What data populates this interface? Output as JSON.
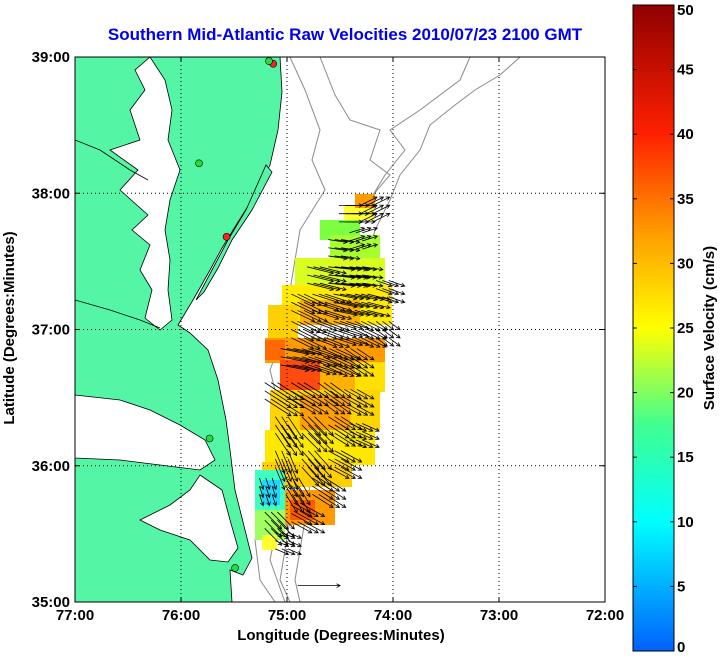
{
  "chart_data": {
    "type": "heatmap",
    "title": "Southern Mid-Atlantic Raw Velocities 2010/07/23 2100 GMT",
    "xlabel": "Longitude (Degrees:Minutes)",
    "ylabel": "Latitude (Degrees:Minutes)",
    "xlim": [
      -77,
      -72
    ],
    "ylim": [
      35,
      39
    ],
    "x_ticks": [
      {
        "value": -77,
        "label": "77:00"
      },
      {
        "value": -76,
        "label": "76:00"
      },
      {
        "value": -75,
        "label": "75:00"
      },
      {
        "value": -74,
        "label": "74:00"
      },
      {
        "value": -73,
        "label": "73:00"
      },
      {
        "value": -72,
        "label": "72:00"
      }
    ],
    "y_ticks": [
      {
        "value": 35,
        "label": "35:00"
      },
      {
        "value": 36,
        "label": "36:00"
      },
      {
        "value": 37,
        "label": "37:00"
      },
      {
        "value": 38,
        "label": "38:00"
      },
      {
        "value": 39,
        "label": "39:00"
      }
    ],
    "grid": true,
    "colorbar": {
      "label": "Surface Velocity (cm/s)",
      "min": 0,
      "max": 50,
      "ticks": [
        0,
        5,
        10,
        15,
        20,
        25,
        30,
        35,
        40,
        45,
        50
      ],
      "placement": "right"
    },
    "scale_vector": {
      "lon": -74.9,
      "lat": 35.12,
      "u": 25,
      "v": 0
    },
    "sites": [
      {
        "lon": -75.13,
        "lat": 38.95,
        "status": "red"
      },
      {
        "lon": -75.17,
        "lat": 38.97,
        "status": "green"
      },
      {
        "lon": -75.83,
        "lat": 38.22,
        "status": "green"
      },
      {
        "lon": -75.57,
        "lat": 37.68,
        "status": "red"
      },
      {
        "lon": -75.73,
        "lat": 36.2,
        "status": "green"
      },
      {
        "lon": -75.49,
        "lat": 35.25,
        "status": "green"
      }
    ],
    "velocity_field": [
      {
        "lon": -74.25,
        "lat": 37.85,
        "u": 18,
        "v": 9,
        "speed": 20
      },
      {
        "lon": -74.45,
        "lat": 37.85,
        "u": 25,
        "v": 0,
        "speed": 25
      },
      {
        "lon": -74.35,
        "lat": 37.65,
        "u": 16,
        "v": 5,
        "speed": 17
      },
      {
        "lon": -74.55,
        "lat": 37.6,
        "u": 20,
        "v": -3,
        "speed": 20
      },
      {
        "lon": -74.35,
        "lat": 37.4,
        "u": 22,
        "v": -3,
        "speed": 22
      },
      {
        "lon": -74.55,
        "lat": 37.4,
        "u": 28,
        "v": -3,
        "speed": 28
      },
      {
        "lon": -74.75,
        "lat": 37.4,
        "u": 28,
        "v": -7,
        "speed": 29
      },
      {
        "lon": -74.1,
        "lat": 37.3,
        "u": 17,
        "v": -6,
        "speed": 18
      },
      {
        "lon": -74.3,
        "lat": 37.2,
        "u": 24,
        "v": -6,
        "speed": 25
      },
      {
        "lon": -74.5,
        "lat": 37.2,
        "u": 25,
        "v": -5,
        "speed": 26
      },
      {
        "lon": -74.7,
        "lat": 37.2,
        "u": 28,
        "v": -9,
        "speed": 29
      },
      {
        "lon": -74.9,
        "lat": 37.2,
        "u": 25,
        "v": -12,
        "speed": 28
      },
      {
        "lon": -74.1,
        "lat": 37.0,
        "u": 12,
        "v": -9,
        "speed": 15
      },
      {
        "lon": -74.3,
        "lat": 37.0,
        "u": 20,
        "v": -10,
        "speed": 22
      },
      {
        "lon": -74.5,
        "lat": 37.0,
        "u": 24,
        "v": -8,
        "speed": 25
      },
      {
        "lon": -74.7,
        "lat": 37.0,
        "u": 26,
        "v": -10,
        "speed": 28
      },
      {
        "lon": -74.9,
        "lat": 37.0,
        "u": 24,
        "v": -12,
        "speed": 27
      },
      {
        "lon": -74.4,
        "lat": 36.8,
        "u": 18,
        "v": -12,
        "speed": 22
      },
      {
        "lon": -74.6,
        "lat": 36.8,
        "u": 26,
        "v": -12,
        "speed": 29
      },
      {
        "lon": -74.8,
        "lat": 36.8,
        "u": 30,
        "v": -10,
        "speed": 32
      },
      {
        "lon": -75.0,
        "lat": 36.8,
        "u": 30,
        "v": -6,
        "speed": 31
      },
      {
        "lon": -75.15,
        "lat": 36.55,
        "u": 28,
        "v": -18,
        "speed": 34
      },
      {
        "lon": -74.9,
        "lat": 36.55,
        "u": 26,
        "v": -16,
        "speed": 31
      },
      {
        "lon": -74.65,
        "lat": 36.55,
        "u": 22,
        "v": -16,
        "speed": 27
      },
      {
        "lon": -74.4,
        "lat": 36.5,
        "u": 18,
        "v": -10,
        "speed": 21
      },
      {
        "lon": -75.05,
        "lat": 36.3,
        "u": 16,
        "v": -24,
        "speed": 29
      },
      {
        "lon": -74.8,
        "lat": 36.3,
        "u": 20,
        "v": -20,
        "speed": 28
      },
      {
        "lon": -74.55,
        "lat": 36.3,
        "u": 22,
        "v": -14,
        "speed": 26
      },
      {
        "lon": -74.35,
        "lat": 36.25,
        "u": 18,
        "v": -8,
        "speed": 20
      },
      {
        "lon": -75.05,
        "lat": 36.05,
        "u": 10,
        "v": -24,
        "speed": 26
      },
      {
        "lon": -74.8,
        "lat": 36.05,
        "u": 18,
        "v": -20,
        "speed": 27
      },
      {
        "lon": -74.55,
        "lat": 36.05,
        "u": 22,
        "v": -12,
        "speed": 25
      },
      {
        "lon": -75.2,
        "lat": 35.85,
        "u": 4,
        "v": -12,
        "speed": 13
      },
      {
        "lon": -74.95,
        "lat": 35.85,
        "u": 12,
        "v": -20,
        "speed": 24
      },
      {
        "lon": -74.7,
        "lat": 35.85,
        "u": 22,
        "v": -14,
        "speed": 26
      },
      {
        "lon": -75.15,
        "lat": 35.6,
        "u": 18,
        "v": -18,
        "speed": 26
      },
      {
        "lon": -74.9,
        "lat": 35.65,
        "u": 22,
        "v": -12,
        "speed": 25
      },
      {
        "lon": -75.05,
        "lat": 35.45,
        "u": 14,
        "v": -6,
        "speed": 15
      }
    ]
  }
}
